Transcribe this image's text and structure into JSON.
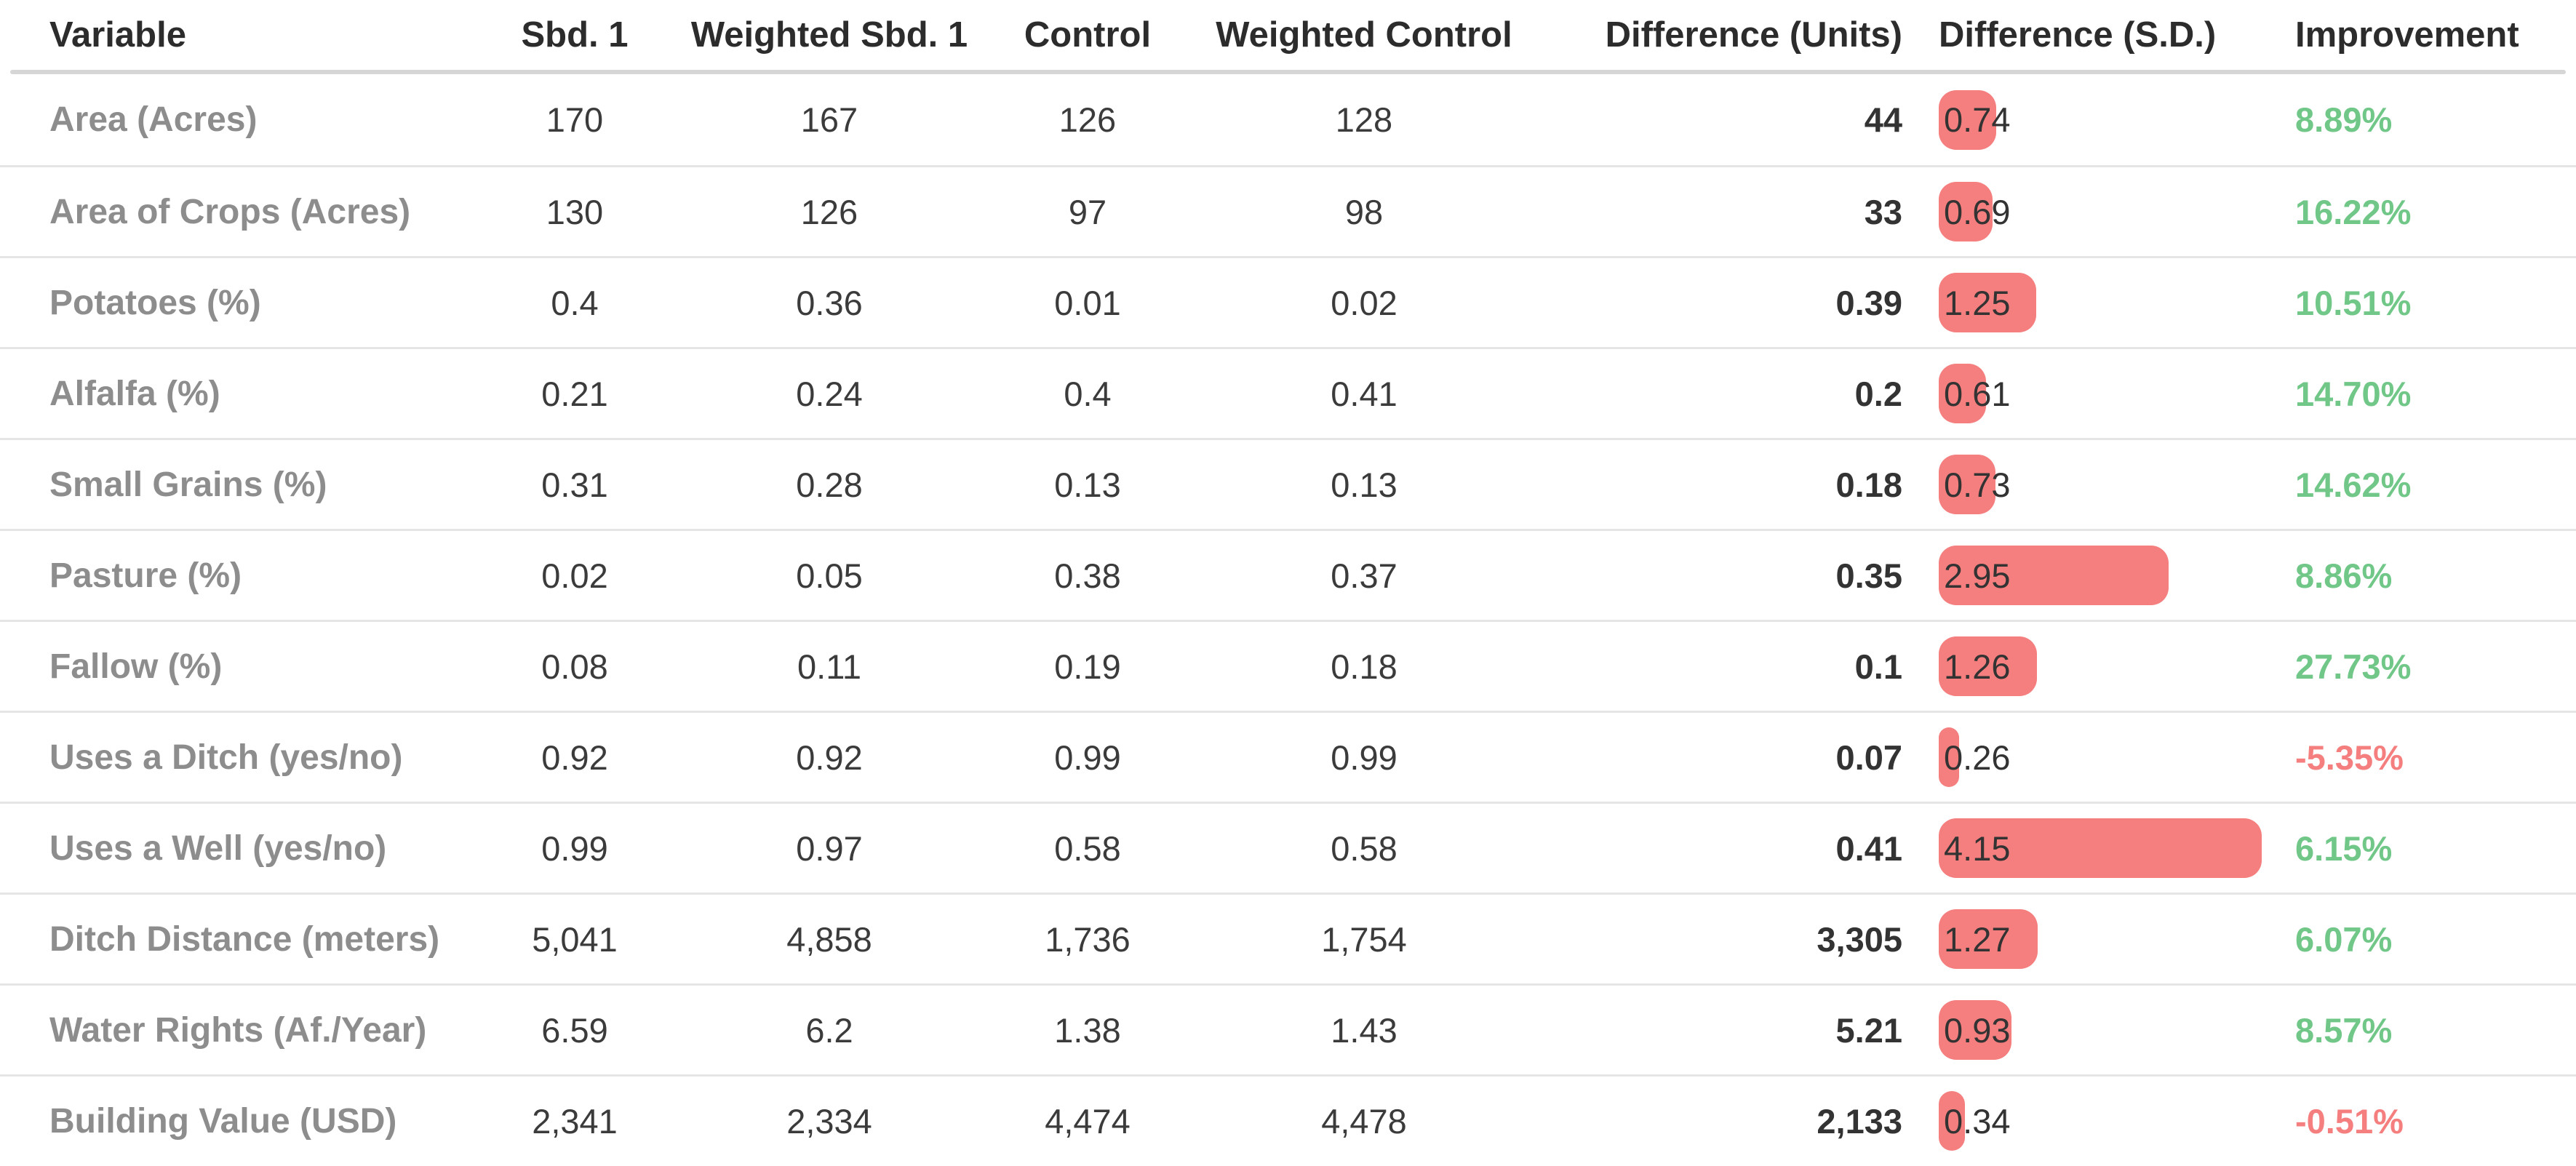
{
  "colors": {
    "bar": "#f57e7e",
    "improvement_positive": "#70c787",
    "improvement_negative": "#f57e7e",
    "row_label": "#8d8d8d",
    "header_text": "#2c2c2c",
    "number_text": "#3b3b3b",
    "header_divider": "#d6d6d6",
    "row_divider": "#e5e5e5"
  },
  "chart_data": {
    "type": "table",
    "title": "Covariate balance comparison table",
    "columns": [
      "Variable",
      "Sbd. 1",
      "Weighted Sbd. 1",
      "Control",
      "Weighted Control",
      "Difference (Units)",
      "Difference (S.D.)",
      "Improvement"
    ],
    "bar_column": "difference_sd",
    "bar_color": "#f57e7e",
    "positive_color": "#70c787",
    "negative_color": "#f57e7e",
    "rows": [
      {
        "variable": "Area (Acres)",
        "sbd1": "170",
        "weighted_sbd1": "167",
        "control": "126",
        "weighted_control": "128",
        "difference_units": "44",
        "difference_sd": "0.74",
        "improvement": "8.89%"
      },
      {
        "variable": "Area of Crops (Acres)",
        "sbd1": "130",
        "weighted_sbd1": "126",
        "control": "97",
        "weighted_control": "98",
        "difference_units": "33",
        "difference_sd": "0.69",
        "improvement": "16.22%"
      },
      {
        "variable": "Potatoes (%)",
        "sbd1": "0.4",
        "weighted_sbd1": "0.36",
        "control": "0.01",
        "weighted_control": "0.02",
        "difference_units": "0.39",
        "difference_sd": "1.25",
        "improvement": "10.51%"
      },
      {
        "variable": "Alfalfa (%)",
        "sbd1": "0.21",
        "weighted_sbd1": "0.24",
        "control": "0.4",
        "weighted_control": "0.41",
        "difference_units": "0.2",
        "difference_sd": "0.61",
        "improvement": "14.70%"
      },
      {
        "variable": "Small Grains (%)",
        "sbd1": "0.31",
        "weighted_sbd1": "0.28",
        "control": "0.13",
        "weighted_control": "0.13",
        "difference_units": "0.18",
        "difference_sd": "0.73",
        "improvement": "14.62%"
      },
      {
        "variable": "Pasture (%)",
        "sbd1": "0.02",
        "weighted_sbd1": "0.05",
        "control": "0.38",
        "weighted_control": "0.37",
        "difference_units": "0.35",
        "difference_sd": "2.95",
        "improvement": "8.86%"
      },
      {
        "variable": "Fallow (%)",
        "sbd1": "0.08",
        "weighted_sbd1": "0.11",
        "control": "0.19",
        "weighted_control": "0.18",
        "difference_units": "0.1",
        "difference_sd": "1.26",
        "improvement": "27.73%"
      },
      {
        "variable": "Uses a Ditch (yes/no)",
        "sbd1": "0.92",
        "weighted_sbd1": "0.92",
        "control": "0.99",
        "weighted_control": "0.99",
        "difference_units": "0.07",
        "difference_sd": "0.26",
        "improvement": "-5.35%"
      },
      {
        "variable": "Uses a Well (yes/no)",
        "sbd1": "0.99",
        "weighted_sbd1": "0.97",
        "control": "0.58",
        "weighted_control": "0.58",
        "difference_units": "0.41",
        "difference_sd": "4.15",
        "improvement": "6.15%"
      },
      {
        "variable": "Ditch Distance (meters)",
        "sbd1": "5,041",
        "weighted_sbd1": "4,858",
        "control": "1,736",
        "weighted_control": "1,754",
        "difference_units": "3,305",
        "difference_sd": "1.27",
        "improvement": "6.07%"
      },
      {
        "variable": "Water Rights (Af./Year)",
        "sbd1": "6.59",
        "weighted_sbd1": "6.2",
        "control": "1.38",
        "weighted_control": "1.43",
        "difference_units": "5.21",
        "difference_sd": "0.93",
        "improvement": "8.57%"
      },
      {
        "variable": "Building Value (USD)",
        "sbd1": "2,341",
        "weighted_sbd1": "2,334",
        "control": "4,474",
        "weighted_control": "4,478",
        "difference_units": "2,133",
        "difference_sd": "0.34",
        "improvement": "-0.51%"
      }
    ]
  }
}
